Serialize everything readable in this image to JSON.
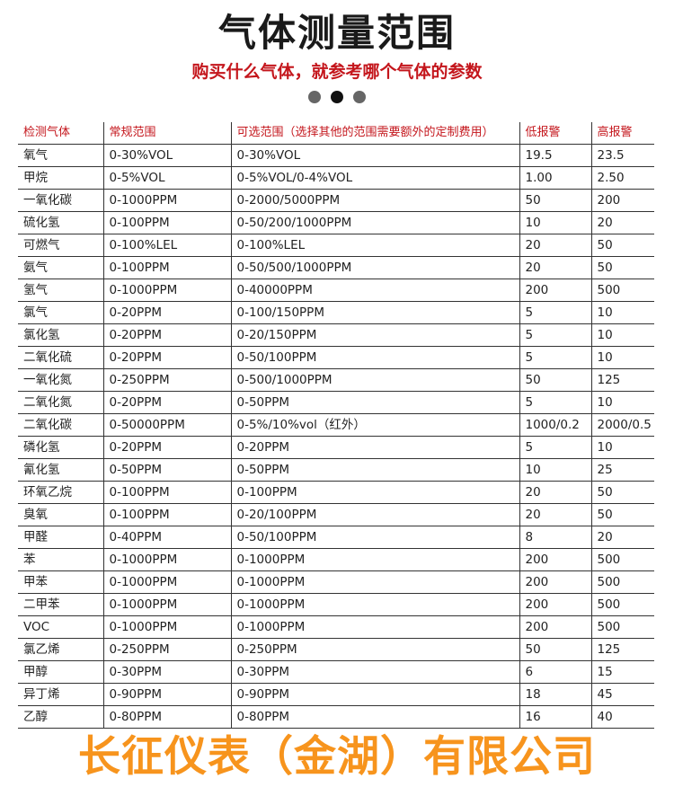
{
  "title": "气体测量范围",
  "subtitle": "购买什么气体，就参考哪个气体的参数",
  "carousel": {
    "active_index": 1,
    "count": 3
  },
  "table": {
    "headers": [
      "检测气体",
      "常规范围",
      "可选范围（选择其他的范围需要额外的定制费用）",
      "低报警",
      "高报警"
    ],
    "rows": [
      [
        "氧气",
        "0-30%VOL",
        "0-30%VOL",
        "19.5",
        "23.5"
      ],
      [
        "甲烷",
        "0-5%VOL",
        "0-5%VOL/0-4%VOL",
        "1.00",
        "2.50"
      ],
      [
        "一氧化碳",
        "0-1000PPM",
        "0-2000/5000PPM",
        "50",
        "200"
      ],
      [
        "硫化氢",
        "0-100PPM",
        "0-50/200/1000PPM",
        "10",
        "20"
      ],
      [
        "可燃气",
        "0-100%LEL",
        "0-100%LEL",
        "20",
        "50"
      ],
      [
        "氨气",
        "0-100PPM",
        "0-50/500/1000PPM",
        "20",
        "50"
      ],
      [
        "氢气",
        "0-1000PPM",
        "0-40000PPM",
        "200",
        "500"
      ],
      [
        "氯气",
        "0-20PPM",
        "0-100/150PPM",
        "5",
        "10"
      ],
      [
        "氯化氢",
        "0-20PPM",
        "0-20/150PPM",
        "5",
        "10"
      ],
      [
        "二氧化硫",
        "0-20PPM",
        "0-50/100PPM",
        "5",
        "10"
      ],
      [
        "一氧化氮",
        "0-250PPM",
        "0-500/1000PPM",
        "50",
        "125"
      ],
      [
        "二氧化氮",
        "0-20PPM",
        "0-50PPM",
        "5",
        "10"
      ],
      [
        "二氧化碳",
        "0-50000PPM",
        "0-5%/10%vol（红外）",
        "1000/0.2",
        "2000/0.5"
      ],
      [
        "磷化氢",
        "0-20PPM",
        "0-20PPM",
        "5",
        "10"
      ],
      [
        "氰化氢",
        "0-50PPM",
        "0-50PPM",
        "10",
        "25"
      ],
      [
        "环氧乙烷",
        "0-100PPM",
        "0-100PPM",
        "20",
        "50"
      ],
      [
        "臭氧",
        "0-100PPM",
        "0-20/100PPM",
        "20",
        "50"
      ],
      [
        "甲醛",
        "0-40PPM",
        "0-50/100PPM",
        "8",
        "20"
      ],
      [
        "苯",
        "0-1000PPM",
        "0-1000PPM",
        "200",
        "500"
      ],
      [
        "甲苯",
        "0-1000PPM",
        "0-1000PPM",
        "200",
        "500"
      ],
      [
        "二甲苯",
        "0-1000PPM",
        "0-1000PPM",
        "200",
        "500"
      ],
      [
        "VOC",
        "0-1000PPM",
        "0-1000PPM",
        "200",
        "500"
      ],
      [
        "氯乙烯",
        "0-250PPM",
        "0-250PPM",
        "50",
        "125"
      ],
      [
        "甲醇",
        "0-30PPM",
        "0-30PPM",
        "6",
        "15"
      ],
      [
        "异丁烯",
        "0-90PPM",
        "0-90PPM",
        "18",
        "45"
      ],
      [
        "乙醇",
        "0-80PPM",
        "0-80PPM",
        "16",
        "40"
      ]
    ]
  },
  "watermark": "长征仪表（金湖）有限公司",
  "colors": {
    "accent_red": "#c4161c",
    "watermark_orange": "#f7941d"
  }
}
